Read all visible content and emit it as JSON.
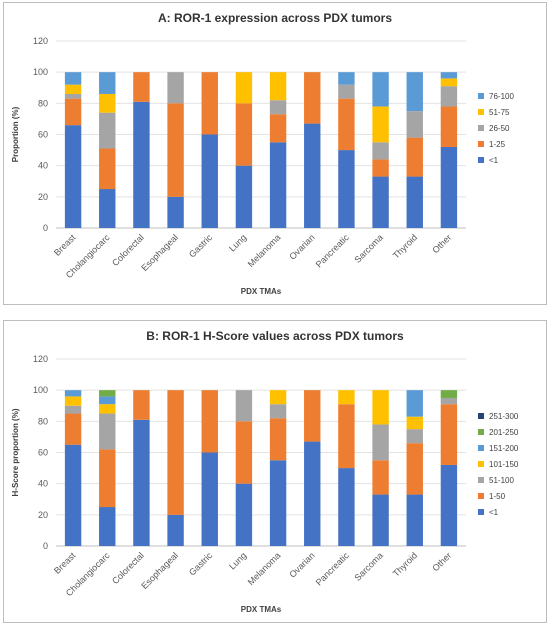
{
  "chart_data": [
    {
      "type": "bar",
      "stacked": true,
      "title": "A: ROR-1 expression across PDX tumors",
      "xlabel": "PDX TMAs",
      "ylabel": "Proportion (%)",
      "ylim": [
        0,
        120
      ],
      "yticks": [
        0,
        20,
        40,
        60,
        80,
        100,
        120
      ],
      "grid": true,
      "legend_position": "right",
      "categories": [
        "Breast",
        "Cholangiocarc",
        "Colorectal",
        "Esophageal",
        "Gastric",
        "Lung",
        "Melanoma",
        "Ovarian",
        "Pancreatic",
        "Sarcoma",
        "Thyroid",
        "Other"
      ],
      "series": [
        {
          "name": "<1",
          "color": "#4472C4",
          "values": [
            66,
            25,
            81,
            20,
            60,
            40,
            55,
            67,
            50,
            33,
            33,
            52
          ]
        },
        {
          "name": "1-25",
          "color": "#ED7D31",
          "values": [
            17,
            26,
            19,
            60,
            40,
            40,
            18,
            33,
            33,
            11,
            25,
            26
          ]
        },
        {
          "name": "26-50",
          "color": "#A5A5A5",
          "values": [
            3,
            23,
            0,
            20,
            0,
            0,
            9,
            0,
            9,
            11,
            17,
            13
          ]
        },
        {
          "name": "51-75",
          "color": "#FFC000",
          "values": [
            6,
            12,
            0,
            0,
            0,
            20,
            18,
            0,
            0,
            23,
            0,
            5
          ]
        },
        {
          "name": "76-100",
          "color": "#5B9BD5",
          "values": [
            8,
            14,
            0,
            0,
            0,
            0,
            0,
            0,
            8,
            22,
            25,
            4
          ]
        }
      ]
    },
    {
      "type": "bar",
      "stacked": true,
      "title": "B: ROR-1 H-Score values across PDX tumors",
      "xlabel": "PDX TMAs",
      "ylabel": "H-Score proportion (%)",
      "ylim": [
        0,
        120
      ],
      "yticks": [
        0,
        20,
        40,
        60,
        80,
        100,
        120
      ],
      "grid": true,
      "legend_position": "right",
      "categories": [
        "Breast",
        "Cholangiocarc",
        "Colorectal",
        "Esophageal",
        "Gastric",
        "Lung",
        "Melanoma",
        "Ovarian",
        "Pancreatic",
        "Sarcoma",
        "Thyroid",
        "Other"
      ],
      "series": [
        {
          "name": "<1",
          "color": "#4472C4",
          "values": [
            65,
            25,
            81,
            20,
            60,
            40,
            55,
            67,
            50,
            33,
            33,
            52
          ]
        },
        {
          "name": "1-50",
          "color": "#ED7D31",
          "values": [
            20,
            37,
            19,
            80,
            40,
            40,
            27,
            33,
            41,
            22,
            33,
            39
          ]
        },
        {
          "name": "51-100",
          "color": "#A5A5A5",
          "values": [
            5,
            23,
            0,
            0,
            0,
            20,
            9,
            0,
            0,
            23,
            9,
            4
          ]
        },
        {
          "name": "101-150",
          "color": "#FFC000",
          "values": [
            6,
            6,
            0,
            0,
            0,
            0,
            9,
            0,
            9,
            22,
            8,
            0
          ]
        },
        {
          "name": "151-200",
          "color": "#5B9BD5",
          "values": [
            4,
            5,
            0,
            0,
            0,
            0,
            0,
            0,
            0,
            0,
            17,
            0
          ]
        },
        {
          "name": "201-250",
          "color": "#70AD47",
          "values": [
            0,
            4,
            0,
            0,
            0,
            0,
            0,
            0,
            0,
            0,
            0,
            5
          ]
        },
        {
          "name": "251-300",
          "color": "#264478",
          "values": [
            0,
            0,
            0,
            0,
            0,
            0,
            0,
            0,
            0,
            0,
            0,
            0
          ]
        }
      ]
    }
  ]
}
